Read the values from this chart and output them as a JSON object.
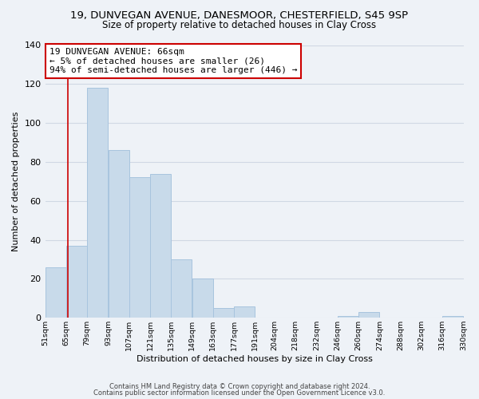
{
  "title_line1": "19, DUNVEGAN AVENUE, DANESMOOR, CHESTERFIELD, S45 9SP",
  "title_line2": "Size of property relative to detached houses in Clay Cross",
  "xlabel": "Distribution of detached houses by size in Clay Cross",
  "ylabel": "Number of detached properties",
  "bar_edges": [
    51,
    65,
    79,
    93,
    107,
    121,
    135,
    149,
    163,
    177,
    191,
    204,
    218,
    232,
    246,
    260,
    274,
    288,
    302,
    316,
    330
  ],
  "bar_heights": [
    26,
    37,
    118,
    86,
    72,
    74,
    30,
    20,
    5,
    6,
    0,
    0,
    0,
    0,
    1,
    3,
    0,
    0,
    0,
    1
  ],
  "bar_color": "#c8daea",
  "bar_edge_color": "#a8c4de",
  "tick_labels": [
    "51sqm",
    "65sqm",
    "79sqm",
    "93sqm",
    "107sqm",
    "121sqm",
    "135sqm",
    "149sqm",
    "163sqm",
    "177sqm",
    "191sqm",
    "204sqm",
    "218sqm",
    "232sqm",
    "246sqm",
    "260sqm",
    "274sqm",
    "288sqm",
    "302sqm",
    "316sqm",
    "330sqm"
  ],
  "vline_x": 66,
  "vline_color": "#cc0000",
  "annotation_text": "19 DUNVEGAN AVENUE: 66sqm\n← 5% of detached houses are smaller (26)\n94% of semi-detached houses are larger (446) →",
  "annotation_box_color": "#ffffff",
  "annotation_box_edge": "#cc0000",
  "ylim": [
    0,
    140
  ],
  "yticks": [
    0,
    20,
    40,
    60,
    80,
    100,
    120,
    140
  ],
  "footer_line1": "Contains HM Land Registry data © Crown copyright and database right 2024.",
  "footer_line2": "Contains public sector information licensed under the Open Government Licence v3.0.",
  "background_color": "#eef2f7",
  "grid_color": "#d0d8e4",
  "title_fontsize": 9.5,
  "subtitle_fontsize": 8.5,
  "ylabel_fontsize": 8,
  "xlabel_fontsize": 8,
  "tick_fontsize": 6.8,
  "annotation_fontsize": 8,
  "footer_fontsize": 6
}
